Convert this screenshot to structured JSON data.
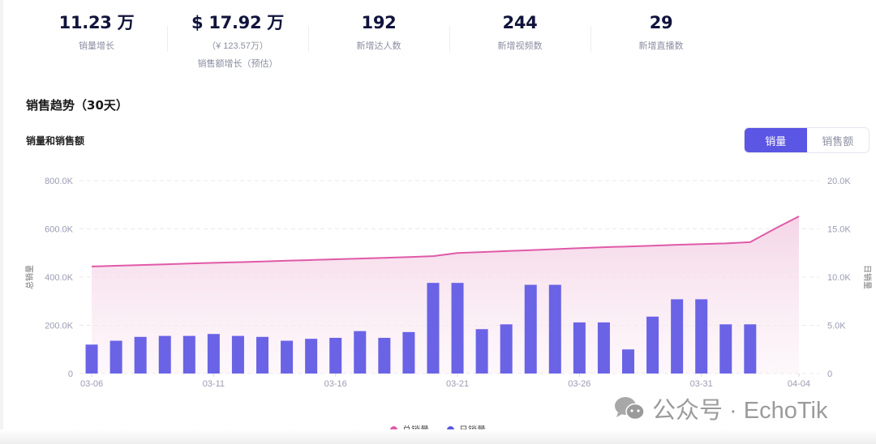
{
  "stats": [
    {
      "value": "11.23 万",
      "label": "销量增长"
    },
    {
      "value": "$ 17.92 万",
      "sub": "（¥ 123.57万）",
      "label": "销售额增长（预估）"
    },
    {
      "value": "192",
      "label": "新增达人数"
    },
    {
      "value": "244",
      "label": "新增视频数"
    },
    {
      "value": "29",
      "label": "新增直播数"
    }
  ],
  "section": {
    "title": "销售趋势（30天）"
  },
  "chart_header": {
    "title": "销量和销售额",
    "toggle": {
      "options": [
        "销量",
        "销售额"
      ],
      "active": "销量"
    }
  },
  "colors": {
    "accent": "#5b56e3",
    "line": "#e05aa8",
    "bar": "#6a63e6",
    "area_top": "#f4d3e6"
  },
  "watermark": "公众号 · EchoTik",
  "chart_data": {
    "type": "bar+line",
    "title": "销量和销售额",
    "xlabel": "",
    "ylabel_left": "总销量",
    "ylabel_right": "日销量",
    "ylim_left": [
      0,
      800000
    ],
    "ylim_right": [
      0,
      20000
    ],
    "yticks_left": [
      "0",
      "200.0K",
      "400.0K",
      "600.0K",
      "800.0K"
    ],
    "yticks_right": [
      "0",
      "5.0K",
      "10.0K",
      "15.0K",
      "20.0K"
    ],
    "xtick_labels": [
      "03-06",
      "03-11",
      "03-16",
      "03-21",
      "03-26",
      "03-31",
      "04-04"
    ],
    "grid": true,
    "legend_position": "bottom",
    "categories": [
      "03-06",
      "03-07",
      "03-08",
      "03-09",
      "03-10",
      "03-11",
      "03-12",
      "03-13",
      "03-14",
      "03-15",
      "03-16",
      "03-17",
      "03-18",
      "03-19",
      "03-20",
      "03-21",
      "03-22",
      "03-23",
      "03-24",
      "03-25",
      "03-26",
      "03-27",
      "03-28",
      "03-29",
      "03-30",
      "03-31",
      "04-01",
      "04-02",
      "04-03",
      "04-04"
    ],
    "series": [
      {
        "name": "总销量",
        "type": "area-line",
        "axis": "left",
        "color": "#e05aa8",
        "values": [
          444000,
          447000,
          450000,
          453000,
          456000,
          459000,
          462000,
          465000,
          468000,
          471000,
          474000,
          477000,
          480000,
          483000,
          487000,
          500000,
          504000,
          508000,
          512000,
          516000,
          520000,
          524000,
          527000,
          530000,
          534000,
          537000,
          540000,
          545000,
          600000,
          652000
        ]
      },
      {
        "name": "日销量",
        "type": "bar",
        "axis": "right",
        "color": "#6a63e6",
        "values": [
          3000,
          3400,
          3800,
          3900,
          3900,
          4100,
          3900,
          3800,
          3400,
          3600,
          3700,
          4400,
          3700,
          4300,
          9400,
          9400,
          4600,
          5100,
          9200,
          9200,
          5300,
          5300,
          2500,
          5900,
          7700,
          7700,
          5100,
          5100,
          null,
          null
        ]
      }
    ]
  }
}
